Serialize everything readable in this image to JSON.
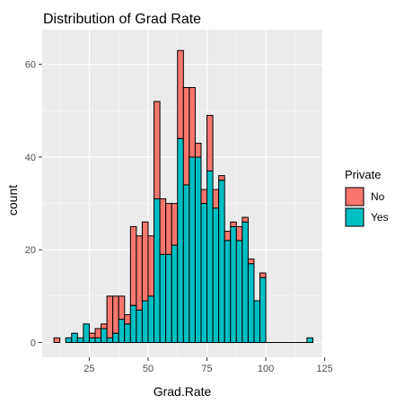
{
  "chart_data": {
    "type": "bar",
    "subtype": "stacked-histogram",
    "title": "Distribution of Grad Rate",
    "xlabel": "Grad.Rate",
    "ylabel": "count",
    "xlim": [
      5,
      124
    ],
    "ylim": [
      -3.2,
      67.5
    ],
    "x_ticks": [
      25,
      50,
      75,
      100,
      125
    ],
    "y_ticks": [
      0,
      20,
      40,
      60
    ],
    "bin_width": 2.5,
    "grid": true,
    "panel_background": "#ebebeb",
    "grid_color": "#ffffff",
    "legend": {
      "title": "Private",
      "position": "right"
    },
    "bin_start": [
      10,
      15,
      17.5,
      20,
      22.5,
      25,
      27.5,
      30,
      32.5,
      35,
      37.5,
      40,
      42.5,
      45,
      47.5,
      50,
      52.5,
      55,
      57.5,
      60,
      62.5,
      65,
      67.5,
      70,
      72.5,
      75,
      77.5,
      80,
      82.5,
      85,
      87.5,
      90,
      92.5,
      95,
      97.5,
      117.5
    ],
    "series": [
      {
        "name": "Yes",
        "color": "#00bfc4",
        "values": [
          0,
          1,
          2,
          1,
          4,
          1,
          1,
          3,
          1,
          2,
          5,
          4,
          8,
          7,
          9,
          10,
          31,
          19,
          19,
          21,
          44,
          34,
          40,
          40,
          30,
          37,
          29,
          35,
          22,
          25,
          22,
          26,
          17,
          9,
          14,
          1
        ]
      },
      {
        "name": "No",
        "color": "#f8766d",
        "values": [
          1,
          0,
          0,
          0,
          0,
          1,
          2,
          1,
          9,
          8,
          5,
          2,
          17,
          16,
          17,
          13,
          21,
          12,
          11,
          9,
          19,
          21,
          15,
          3,
          3,
          12,
          4,
          1,
          2,
          1,
          3,
          1,
          1,
          0,
          1,
          0
        ]
      }
    ]
  }
}
